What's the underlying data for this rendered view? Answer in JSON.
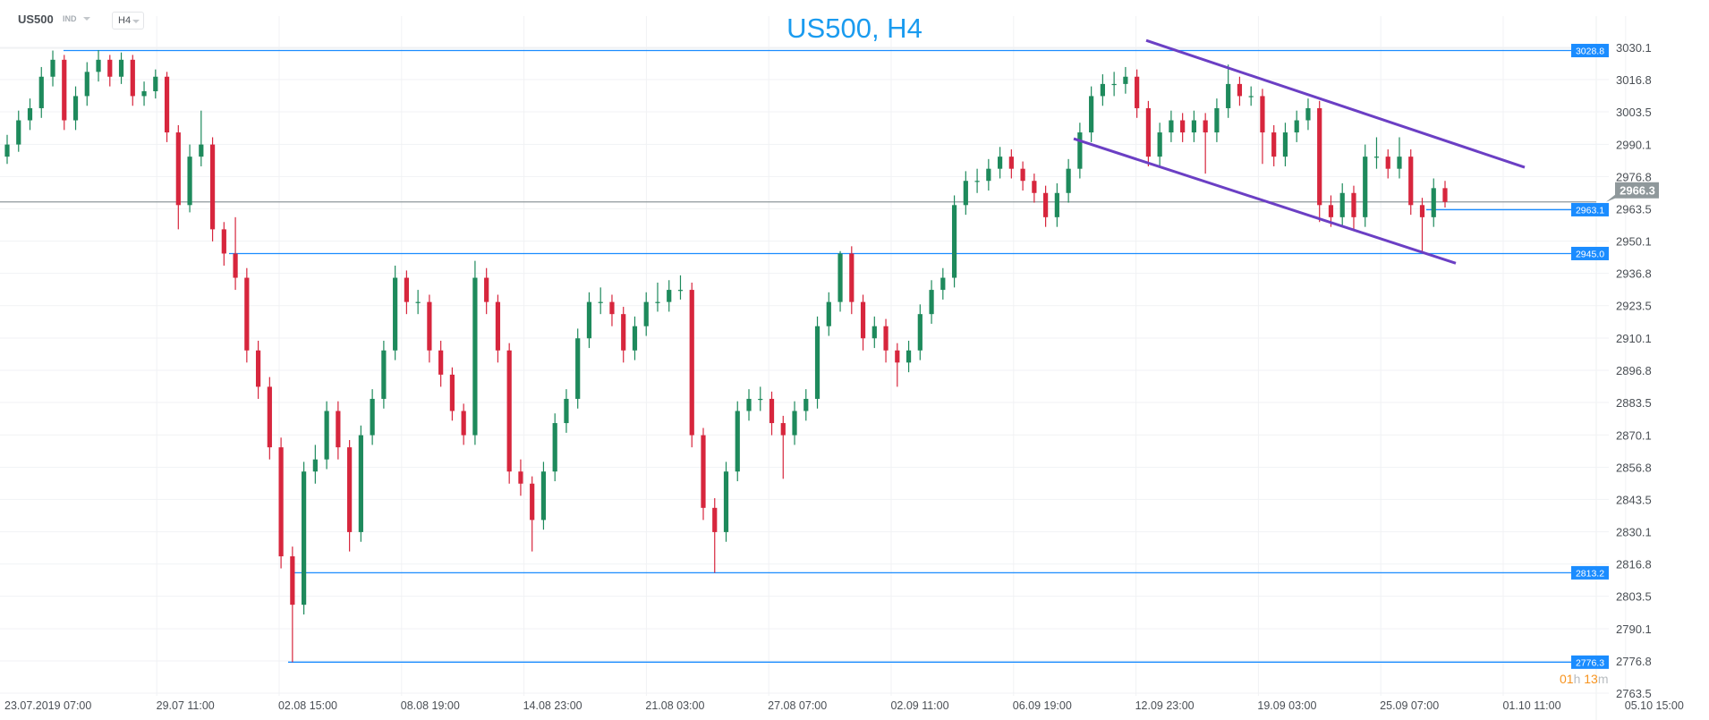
{
  "header": {
    "symbol": "US500",
    "instrument_type": "IND",
    "timeframe": "H4"
  },
  "countdown": {
    "hours": "01",
    "hours_unit": "h",
    "minutes": "13",
    "minutes_unit": "m"
  },
  "colors": {
    "up": "#1e8a5c",
    "down": "#d7263d",
    "level_line": "#1a8cff",
    "channel": "#6b3fc4",
    "last_price": "#8f989b",
    "title": "#1a9bef",
    "countdown": "#f7931e"
  },
  "chart_data": {
    "type": "candlestick",
    "title": "US500, H4",
    "ylim": [
      2763.5,
      3030.1
    ],
    "y_ticks": [
      "3030.1",
      "3016.8",
      "3003.5",
      "2990.1",
      "2976.8",
      "2963.5",
      "2950.1",
      "2936.8",
      "2923.5",
      "2910.1",
      "2896.8",
      "2883.5",
      "2870.1",
      "2856.8",
      "2843.5",
      "2830.1",
      "2816.8",
      "2803.5",
      "2790.1",
      "2776.8",
      "2763.5"
    ],
    "x_ticks": [
      "23.07.2019  07:00",
      "29.07  11:00",
      "02.08  15:00",
      "08.08  19:00",
      "14.08  23:00",
      "21.08  03:00",
      "27.08  07:00",
      "02.09  11:00",
      "06.09  19:00",
      "12.09  23:00",
      "19.09  03:00",
      "25.09  07:00",
      "01.10  11:00",
      "05.10  15:00"
    ],
    "grid": true,
    "last_price": "2966.3",
    "levels": [
      "3028.8",
      "2963.1",
      "2945.0",
      "2813.2",
      "2776.3"
    ],
    "channel": {
      "upper": [
        3033.0,
        2980.6
      ],
      "lower": [
        2992.4,
        2941.0
      ]
    },
    "candles_ohlc": [
      [
        2985,
        2994,
        2982,
        2990
      ],
      [
        2990,
        3004,
        2987,
        3000
      ],
      [
        3000,
        3009,
        2996,
        3005
      ],
      [
        3005,
        3022,
        3001,
        3018
      ],
      [
        3018,
        3028.8,
        3014,
        3025
      ],
      [
        3025,
        3027,
        2996,
        3000
      ],
      [
        3000,
        3014,
        2996,
        3010
      ],
      [
        3010,
        3024,
        3006,
        3020
      ],
      [
        3020,
        3029,
        3016,
        3025
      ],
      [
        3025,
        3027,
        3014,
        3018
      ],
      [
        3018,
        3028,
        3015,
        3025
      ],
      [
        3025,
        3027,
        3006,
        3010
      ],
      [
        3010,
        3016,
        3006,
        3012
      ],
      [
        3012,
        3021,
        3009,
        3018
      ],
      [
        3018,
        3020,
        2991,
        2995
      ],
      [
        2995,
        2998,
        2955,
        2965
      ],
      [
        2965,
        2990,
        2962,
        2985
      ],
      [
        2985,
        3004,
        2981,
        2990
      ],
      [
        2990,
        2993,
        2950,
        2955
      ],
      [
        2955,
        2958,
        2940,
        2945
      ],
      [
        2945,
        2960,
        2930,
        2935
      ],
      [
        2935,
        2939,
        2900,
        2905
      ],
      [
        2905,
        2909,
        2885,
        2890
      ],
      [
        2890,
        2894,
        2860,
        2865
      ],
      [
        2865,
        2869,
        2815,
        2820
      ],
      [
        2820,
        2824,
        2776.3,
        2800
      ],
      [
        2800,
        2859,
        2796,
        2855
      ],
      [
        2855,
        2866,
        2850,
        2860
      ],
      [
        2860,
        2884,
        2856,
        2880
      ],
      [
        2880,
        2884,
        2860,
        2865
      ],
      [
        2865,
        2868,
        2822,
        2830
      ],
      [
        2830,
        2874,
        2826,
        2870
      ],
      [
        2870,
        2889,
        2866,
        2885
      ],
      [
        2885,
        2909,
        2881,
        2905
      ],
      [
        2905,
        2940,
        2901,
        2935
      ],
      [
        2935,
        2938,
        2920,
        2925
      ],
      [
        2925,
        2930,
        2920,
        2925
      ],
      [
        2925,
        2928,
        2900,
        2905
      ],
      [
        2905,
        2909,
        2890,
        2895
      ],
      [
        2895,
        2898,
        2876,
        2880
      ],
      [
        2880,
        2883,
        2866,
        2870
      ],
      [
        2870,
        2942,
        2866,
        2935
      ],
      [
        2935,
        2939,
        2920,
        2925
      ],
      [
        2925,
        2928,
        2900,
        2905
      ],
      [
        2905,
        2908,
        2850,
        2855
      ],
      [
        2855,
        2860,
        2845,
        2850
      ],
      [
        2850,
        2853,
        2822,
        2835
      ],
      [
        2835,
        2859,
        2831,
        2855
      ],
      [
        2855,
        2879,
        2851,
        2875
      ],
      [
        2875,
        2889,
        2871,
        2885
      ],
      [
        2885,
        2914,
        2881,
        2910
      ],
      [
        2910,
        2929,
        2906,
        2925
      ],
      [
        2925,
        2931,
        2920,
        2925
      ],
      [
        2925,
        2928,
        2915,
        2920
      ],
      [
        2920,
        2923,
        2900,
        2905
      ],
      [
        2905,
        2919,
        2901,
        2915
      ],
      [
        2915,
        2929,
        2911,
        2925
      ],
      [
        2925,
        2933,
        2921,
        2925
      ],
      [
        2925,
        2934,
        2921,
        2930
      ],
      [
        2930,
        2936,
        2926,
        2930
      ],
      [
        2930,
        2933,
        2865,
        2870
      ],
      [
        2870,
        2873,
        2835,
        2840
      ],
      [
        2840,
        2844,
        2813.2,
        2830
      ],
      [
        2830,
        2859,
        2826,
        2855
      ],
      [
        2855,
        2884,
        2851,
        2880
      ],
      [
        2880,
        2889,
        2876,
        2885
      ],
      [
        2885,
        2890,
        2880,
        2885
      ],
      [
        2885,
        2888,
        2870,
        2875
      ],
      [
        2875,
        2878,
        2852,
        2870
      ],
      [
        2870,
        2884,
        2866,
        2880
      ],
      [
        2880,
        2889,
        2876,
        2885
      ],
      [
        2885,
        2919,
        2881,
        2915
      ],
      [
        2915,
        2929,
        2911,
        2925
      ],
      [
        2925,
        2946,
        2921,
        2945
      ],
      [
        2945,
        2948,
        2920,
        2925
      ],
      [
        2925,
        2928,
        2905,
        2910
      ],
      [
        2910,
        2919,
        2906,
        2915
      ],
      [
        2915,
        2918,
        2900,
        2905
      ],
      [
        2905,
        2908,
        2890,
        2900
      ],
      [
        2900,
        2909,
        2896,
        2905
      ],
      [
        2905,
        2924,
        2901,
        2920
      ],
      [
        2920,
        2934,
        2916,
        2930
      ],
      [
        2930,
        2939,
        2926,
        2935
      ],
      [
        2935,
        2969,
        2931,
        2965
      ],
      [
        2965,
        2979,
        2961,
        2975
      ],
      [
        2975,
        2980,
        2970,
        2975
      ],
      [
        2975,
        2984,
        2971,
        2980
      ],
      [
        2980,
        2989,
        2976,
        2985
      ],
      [
        2985,
        2988,
        2976,
        2980
      ],
      [
        2980,
        2983,
        2971,
        2975
      ],
      [
        2975,
        2978,
        2966,
        2970
      ],
      [
        2970,
        2973,
        2956,
        2960
      ],
      [
        2960,
        2974,
        2956,
        2970
      ],
      [
        2970,
        2984,
        2966,
        2980
      ],
      [
        2980,
        2999,
        2976,
        2995
      ],
      [
        2995,
        3014,
        2991,
        3010
      ],
      [
        3010,
        3019,
        3006,
        3015
      ],
      [
        3015,
        3020,
        3010,
        3015
      ],
      [
        3015,
        3022,
        3011,
        3018
      ],
      [
        3018,
        3021,
        3001,
        3005
      ],
      [
        3005,
        3008,
        2981,
        2985
      ],
      [
        2985,
        2999,
        2981,
        2995
      ],
      [
        2995,
        3004,
        2991,
        3000
      ],
      [
        3000,
        3003,
        2991,
        2995
      ],
      [
        2995,
        3004,
        2991,
        3000
      ],
      [
        3000,
        3003,
        2978,
        2995
      ],
      [
        2995,
        3009,
        2991,
        3005
      ],
      [
        3005,
        3023,
        3001,
        3015
      ],
      [
        3015,
        3018,
        3006,
        3010
      ],
      [
        3010,
        3014,
        3006,
        3010
      ],
      [
        3010,
        3013,
        2982,
        2995
      ],
      [
        2995,
        2998,
        2981,
        2985
      ],
      [
        2985,
        2999,
        2981,
        2995
      ],
      [
        2995,
        3004,
        2991,
        3000
      ],
      [
        3000,
        3009,
        2996,
        3005
      ],
      [
        3005,
        3008,
        2958,
        2965
      ],
      [
        2965,
        2969,
        2956,
        2960
      ],
      [
        2960,
        2974,
        2956,
        2970
      ],
      [
        2970,
        2973,
        2955,
        2960
      ],
      [
        2960,
        2990,
        2956,
        2985
      ],
      [
        2985,
        2993,
        2980,
        2985
      ],
      [
        2985,
        2988,
        2976,
        2980
      ],
      [
        2980,
        2993,
        2976,
        2985
      ],
      [
        2985,
        2988,
        2961,
        2965
      ],
      [
        2965,
        2968,
        2945,
        2960
      ],
      [
        2960,
        2976,
        2956,
        2972
      ],
      [
        2972,
        2975,
        2964,
        2966.3
      ]
    ]
  }
}
